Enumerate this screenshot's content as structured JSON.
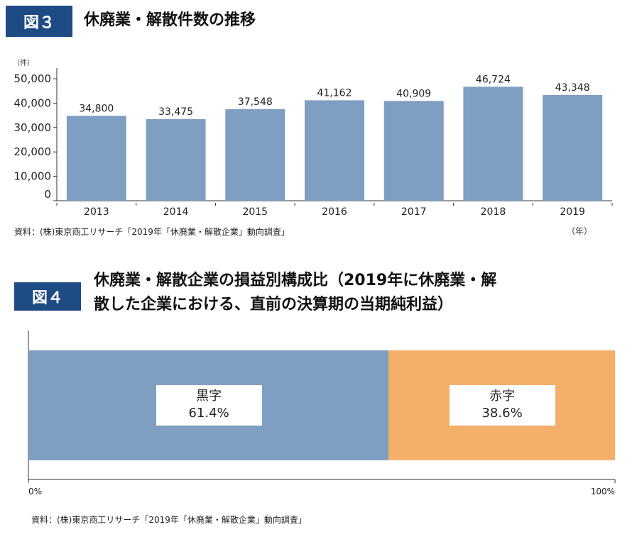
{
  "fig3": {
    "badge": "図３",
    "title": "休廃業・解散件数の推移",
    "source": "資料：(株)東京商工リサーチ「2019年「休廃業・解散企業」動向調査」"
  },
  "fig4": {
    "badge": "図４",
    "title_line1": "休廃業・解散企業の損益別構成比（2019年に休廃業・解",
    "title_line2": "散した企業における、直前の決算期の当期純利益）",
    "source": "資料：(株)東京商工リサーチ「2019年「休廃業・解散企業」動向調査」"
  },
  "chart_data": [
    {
      "type": "bar",
      "categories": [
        "2013",
        "2014",
        "2015",
        "2016",
        "2017",
        "2018",
        "2019"
      ],
      "values": [
        34800,
        33475,
        37548,
        41162,
        40909,
        46724,
        43348
      ],
      "data_labels": [
        "34,800",
        "33,475",
        "37,548",
        "41,162",
        "40,909",
        "46,724",
        "43,348"
      ],
      "yunit": "（件）",
      "xunit": "（年）",
      "ylim": [
        0,
        50000
      ],
      "yticks": [
        "0",
        "10,000",
        "20,000",
        "30,000",
        "40,000",
        "50,000"
      ],
      "grid": false,
      "color": "#7f9fc2"
    },
    {
      "type": "bar",
      "orientation": "horizontal-stacked-100",
      "series": [
        {
          "name": "黒字",
          "value": 61.4,
          "label": "61.4%",
          "color": "#7f9fc2"
        },
        {
          "name": "赤字",
          "value": 38.6,
          "label": "38.6%",
          "color": "#f4b06b"
        }
      ],
      "xticks": [
        "0%",
        "100%"
      ]
    }
  ]
}
